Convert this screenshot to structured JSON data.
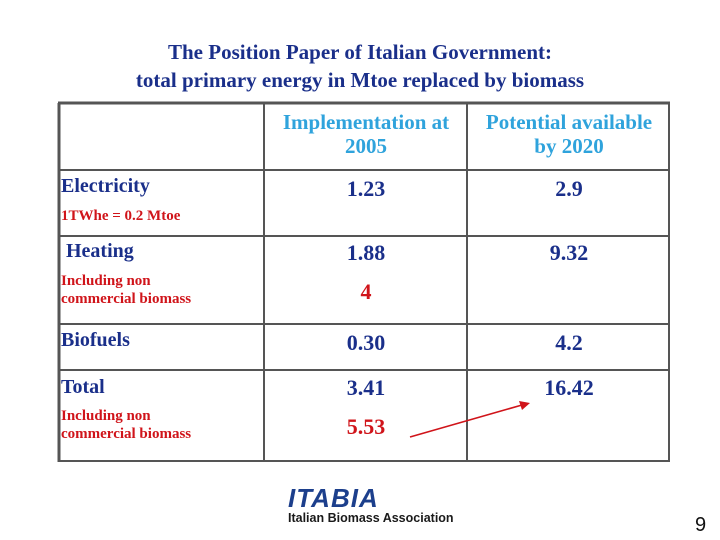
{
  "slide": {
    "title_line1": "The Position Paper of Italian Government:",
    "title_line2": "total primary energy in Mtoe replaced by biomass",
    "page_number": "9"
  },
  "table": {
    "headers": {
      "col2_line1": "Implementation at",
      "col2_line2": "2005",
      "col3_line1": "Potential available",
      "col3_line2": "by 2020"
    },
    "rows": [
      {
        "label": "Electricity",
        "note": "1TWhe = 0.2 Mtoe",
        "v2005": "1.23",
        "v2005_extra": "",
        "v2020": "2.9"
      },
      {
        "label": "Heating",
        "note_line1": "Including non",
        "note_line2": "commercial biomass",
        "v2005": "1.88",
        "v2005_extra": "4",
        "v2020": "9.32"
      },
      {
        "label": "Biofuels",
        "v2005": "0.30",
        "v2020": "4.2"
      },
      {
        "label": "Total",
        "note_line1": "Including non",
        "note_line2": "commercial biomass",
        "v2005": "3.41",
        "v2005_extra": "5.53",
        "v2020": "16.42"
      }
    ]
  },
  "logo": {
    "word": "ITABIA",
    "subtitle": "Italian Biomass Association"
  },
  "colors": {
    "title": "#1a2f8a",
    "header": "#2fa3dc",
    "note": "#d0141a",
    "value": "#1a2f8a",
    "arrow": "#d0141a"
  }
}
